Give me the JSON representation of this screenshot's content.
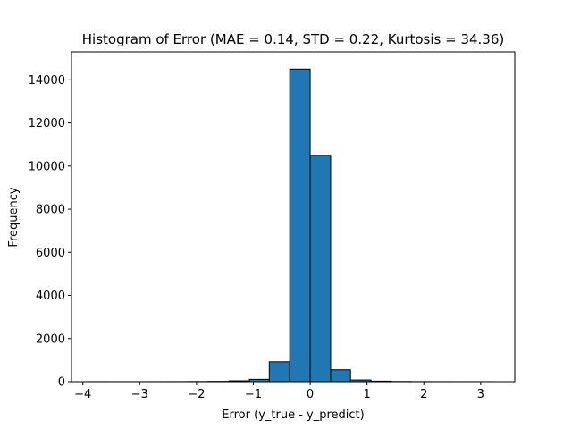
{
  "chart_data": {
    "type": "bar",
    "subtype": "histogram",
    "title": "Histogram of Error (MAE = 0.14, STD = 0.22, Kurtosis = 34.36)",
    "xlabel": "Error (y_true - y_predict)",
    "ylabel": "Frequency",
    "xlim": [
      -4.2,
      3.6
    ],
    "ylim": [
      0,
      15300
    ],
    "xticks": [
      -4,
      -3,
      -2,
      -1,
      0,
      1,
      2,
      3
    ],
    "yticks": [
      0,
      2000,
      4000,
      6000,
      8000,
      10000,
      12000,
      14000
    ],
    "bin_edges": [
      -3.92,
      -3.57,
      -3.21,
      -2.86,
      -2.5,
      -2.14,
      -1.79,
      -1.43,
      -1.07,
      -0.72,
      -0.36,
      0.0,
      0.36,
      0.71,
      1.07,
      1.43,
      1.78,
      2.14,
      2.5,
      2.85,
      3.21
    ],
    "counts": [
      3,
      2,
      2,
      3,
      5,
      8,
      15,
      40,
      110,
      920,
      14500,
      10500,
      550,
      80,
      25,
      10,
      5,
      3,
      2,
      2
    ],
    "bar_color": "#1f77b4",
    "edge_color": "#000000",
    "grid": false,
    "legend": "none"
  }
}
